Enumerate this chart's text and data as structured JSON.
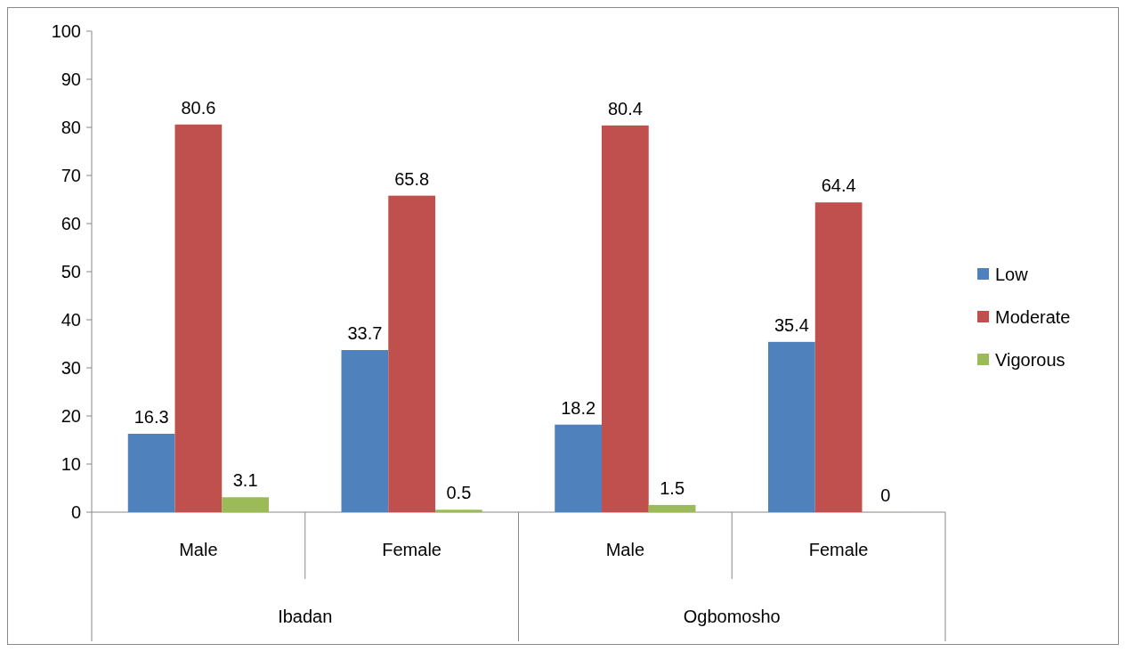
{
  "chart_data": {
    "type": "bar",
    "categories": [
      "Male",
      "Female",
      "Male",
      "Female"
    ],
    "series": [
      {
        "name": "Low",
        "color": "#4f81bd",
        "values": [
          16.3,
          33.7,
          18.2,
          35.4
        ]
      },
      {
        "name": "Moderate",
        "color": "#c0504d",
        "values": [
          80.6,
          65.8,
          80.4,
          64.4
        ]
      },
      {
        "name": "Vigorous",
        "color": "#9bbb59",
        "values": [
          3.1,
          0.5,
          1.5,
          0
        ]
      }
    ],
    "annotations": [
      "Ibadan",
      "Ogbomosho"
    ],
    "ylim": [
      0,
      100
    ],
    "yticks": [
      0,
      10,
      20,
      30,
      40,
      50,
      60,
      70,
      80,
      90,
      100
    ],
    "data_labels": true,
    "legend": "right",
    "grid": false
  }
}
